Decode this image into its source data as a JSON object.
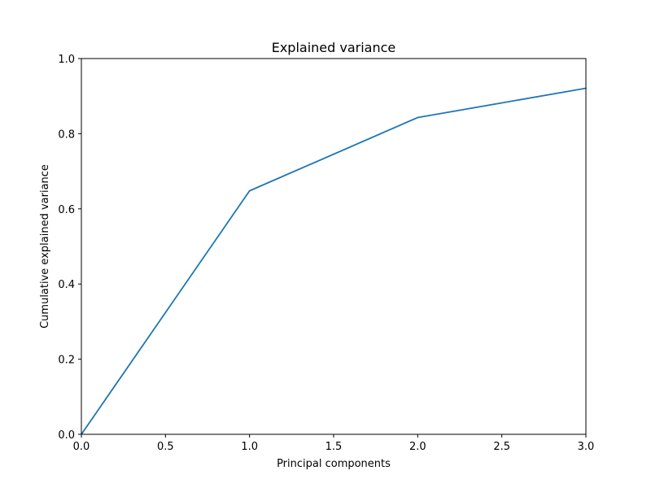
{
  "chart_data": {
    "type": "line",
    "title": "Explained variance",
    "xlabel": "Principal components",
    "ylabel": "Cumulative explained variance",
    "xlim": [
      0,
      3
    ],
    "ylim": [
      0,
      1
    ],
    "x_ticks": [
      "0.0",
      "0.5",
      "1.0",
      "1.5",
      "2.0",
      "2.5",
      "3.0"
    ],
    "y_ticks": [
      "0.0",
      "0.2",
      "0.4",
      "0.6",
      "0.8",
      "1.0"
    ],
    "grid": false,
    "series": [
      {
        "color": "#1f77b4",
        "x": [
          0,
          1,
          2,
          3
        ],
        "y": [
          0,
          0.648,
          0.843,
          0.921
        ]
      }
    ]
  }
}
